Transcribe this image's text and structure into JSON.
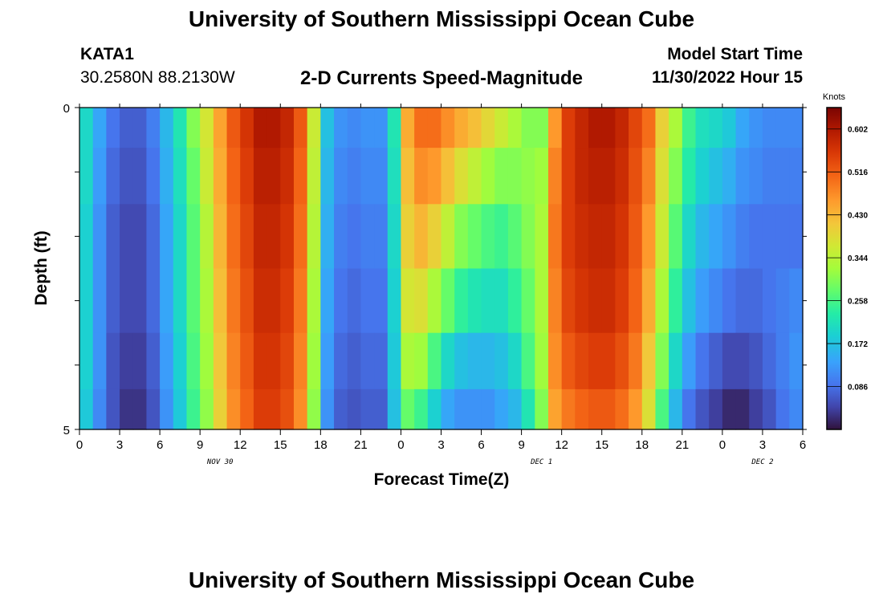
{
  "header": {
    "title": "University of Southern Mississippi Ocean Cube",
    "station_id": "KATA1",
    "station_coords": "30.2580N  88.2130W",
    "subtitle": "2-D Currents Speed-Magnitude",
    "model_start_label": "Model Start Time",
    "model_start_value": "11/30/2022 Hour 15"
  },
  "footer": {
    "title": "University of Southern Mississippi Ocean Cube"
  },
  "chart_data": {
    "type": "heatmap",
    "xlabel": "Forecast Time(Z)",
    "ylabel": "Depth (ft)",
    "x_tick_labels": [
      "0",
      "3",
      "6",
      "9",
      "12",
      "15",
      "18",
      "21",
      "0",
      "3",
      "6",
      "9",
      "12",
      "15",
      "18",
      "21",
      "0",
      "3",
      "6"
    ],
    "x_date_labels": [
      {
        "label": "NOV 30",
        "at_tick": 3.5
      },
      {
        "label": "DEC 1",
        "at_tick": 11.5
      },
      {
        "label": "DEC 2",
        "at_tick": 17
      }
    ],
    "y_tick_labels": [
      {
        "label": "0",
        "depth": 0
      },
      {
        "label": "5",
        "depth": 5
      }
    ],
    "xlim_hours": [
      0,
      54
    ],
    "ylim_ft": [
      0,
      5
    ],
    "colorbar": {
      "unit_label": "Knots",
      "min": 0,
      "max": 0.645,
      "ticks": [
        0.086,
        0.172,
        0.258,
        0.344,
        0.43,
        0.516,
        0.602
      ]
    },
    "depth_levels_ft": [
      0.25,
      1,
      2,
      3,
      4,
      4.75
    ],
    "hour_columns": [
      0,
      1,
      2,
      3,
      4,
      5,
      6,
      7,
      8,
      9,
      10,
      11,
      12,
      13,
      14,
      15,
      16,
      17,
      18,
      19,
      20,
      21,
      22,
      23,
      24,
      25,
      26,
      27,
      28,
      29,
      30,
      31,
      32,
      33,
      34,
      35,
      36,
      37,
      38,
      39,
      40,
      41,
      42,
      43,
      44,
      45,
      46,
      47,
      48,
      49,
      50,
      51,
      52,
      53
    ],
    "speed_knots": [
      [
        0.2,
        0.14,
        0.09,
        0.07,
        0.07,
        0.1,
        0.16,
        0.22,
        0.3,
        0.37,
        0.45,
        0.52,
        0.56,
        0.6,
        0.6,
        0.58,
        0.52,
        0.36,
        0.17,
        0.12,
        0.11,
        0.12,
        0.12,
        0.22,
        0.44,
        0.5,
        0.5,
        0.47,
        0.44,
        0.42,
        0.39,
        0.36,
        0.33,
        0.3,
        0.3,
        0.46,
        0.55,
        0.58,
        0.6,
        0.6,
        0.58,
        0.54,
        0.5,
        0.4,
        0.33,
        0.25,
        0.21,
        0.2,
        0.18,
        0.14,
        0.12,
        0.11,
        0.11,
        0.11
      ],
      [
        0.2,
        0.13,
        0.08,
        0.06,
        0.06,
        0.09,
        0.15,
        0.21,
        0.28,
        0.36,
        0.44,
        0.51,
        0.55,
        0.59,
        0.59,
        0.57,
        0.51,
        0.35,
        0.16,
        0.11,
        0.1,
        0.11,
        0.11,
        0.21,
        0.42,
        0.47,
        0.46,
        0.42,
        0.38,
        0.35,
        0.32,
        0.3,
        0.3,
        0.31,
        0.32,
        0.48,
        0.55,
        0.58,
        0.59,
        0.59,
        0.57,
        0.53,
        0.48,
        0.38,
        0.3,
        0.23,
        0.19,
        0.17,
        0.15,
        0.12,
        0.11,
        0.1,
        0.1,
        0.1
      ],
      [
        0.19,
        0.12,
        0.07,
        0.05,
        0.05,
        0.08,
        0.14,
        0.2,
        0.27,
        0.34,
        0.43,
        0.5,
        0.54,
        0.58,
        0.58,
        0.56,
        0.5,
        0.34,
        0.15,
        0.1,
        0.09,
        0.1,
        0.1,
        0.2,
        0.4,
        0.43,
        0.4,
        0.35,
        0.3,
        0.28,
        0.26,
        0.25,
        0.27,
        0.3,
        0.33,
        0.49,
        0.55,
        0.57,
        0.58,
        0.58,
        0.56,
        0.52,
        0.46,
        0.36,
        0.27,
        0.2,
        0.16,
        0.14,
        0.12,
        0.1,
        0.09,
        0.09,
        0.09,
        0.09
      ],
      [
        0.19,
        0.12,
        0.07,
        0.05,
        0.05,
        0.08,
        0.14,
        0.2,
        0.27,
        0.33,
        0.42,
        0.49,
        0.53,
        0.57,
        0.57,
        0.55,
        0.49,
        0.33,
        0.14,
        0.09,
        0.08,
        0.09,
        0.09,
        0.19,
        0.37,
        0.38,
        0.33,
        0.28,
        0.24,
        0.22,
        0.21,
        0.21,
        0.24,
        0.28,
        0.33,
        0.48,
        0.54,
        0.56,
        0.57,
        0.57,
        0.55,
        0.51,
        0.44,
        0.33,
        0.24,
        0.17,
        0.13,
        0.11,
        0.09,
        0.08,
        0.08,
        0.09,
        0.1,
        0.11
      ],
      [
        0.19,
        0.12,
        0.06,
        0.04,
        0.04,
        0.07,
        0.13,
        0.19,
        0.26,
        0.32,
        0.41,
        0.48,
        0.52,
        0.56,
        0.56,
        0.54,
        0.48,
        0.32,
        0.13,
        0.08,
        0.07,
        0.08,
        0.08,
        0.18,
        0.33,
        0.32,
        0.26,
        0.2,
        0.17,
        0.16,
        0.16,
        0.17,
        0.2,
        0.26,
        0.32,
        0.47,
        0.52,
        0.54,
        0.55,
        0.55,
        0.53,
        0.49,
        0.41,
        0.3,
        0.2,
        0.13,
        0.09,
        0.07,
        0.05,
        0.05,
        0.06,
        0.08,
        0.1,
        0.12
      ],
      [
        0.18,
        0.11,
        0.06,
        0.03,
        0.03,
        0.06,
        0.12,
        0.18,
        0.25,
        0.31,
        0.4,
        0.47,
        0.51,
        0.55,
        0.55,
        0.53,
        0.47,
        0.31,
        0.12,
        0.07,
        0.06,
        0.07,
        0.07,
        0.17,
        0.28,
        0.25,
        0.19,
        0.14,
        0.12,
        0.12,
        0.12,
        0.14,
        0.16,
        0.22,
        0.3,
        0.45,
        0.49,
        0.51,
        0.52,
        0.52,
        0.5,
        0.46,
        0.38,
        0.26,
        0.16,
        0.09,
        0.06,
        0.04,
        0.02,
        0.02,
        0.04,
        0.06,
        0.09,
        0.11
      ]
    ]
  }
}
